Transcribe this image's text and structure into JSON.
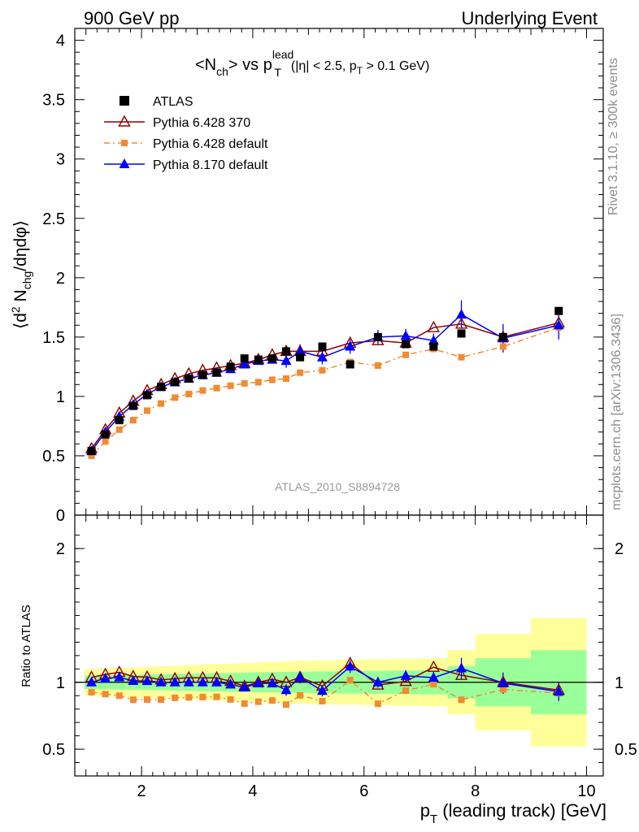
{
  "header": {
    "left": "900 GeV pp",
    "right": "Underlying Event"
  },
  "side_labels": {
    "top": "Rivet 3.1.10, ≥ 300k events",
    "bottom": "mcplots.cern.ch [arXiv:1306.3436]"
  },
  "watermark": "ATLAS_2010_S8894728",
  "chart_data": {
    "type": "scatter",
    "title": "<N_ch> vs p_T^lead (|η| < 2.5, p_T > 0.1 GeV)",
    "title_parts": {
      "main_a": "<N",
      "main_sub": "ch",
      "main_b": "> vs p",
      "main_sup": "lead",
      "main_sub2": "T",
      "cond_a": "(|η| < 2.5, p",
      "cond_sub": "T",
      "cond_b": " > 0.1 GeV)"
    },
    "xlabel": "p_T (leading track) [GeV]",
    "xlabel_parts": {
      "a": "p",
      "sub": "T",
      "b": " (leading track) [GeV]"
    },
    "ylabel": "⟨d² N_chg/dηdφ⟩",
    "ylabel_parts": {
      "a": "⟨d",
      "sup": "2",
      "b": " N",
      "sub": "chg",
      "c": "/dηdφ⟩"
    },
    "ratio_ylabel": "Ratio to ATLAS",
    "xlim": [
      0.8,
      10.3
    ],
    "ylim": [
      0,
      4.1
    ],
    "ratio_ylim": [
      0.3,
      2.25
    ],
    "x_ticks": [
      "2",
      "4",
      "6",
      "8",
      "10"
    ],
    "y_ticks": [
      "0",
      "0.5",
      "1",
      "1.5",
      "2",
      "2.5",
      "3",
      "3.5",
      "4"
    ],
    "ratio_ticks": [
      "0.5",
      "1",
      "2"
    ],
    "legend_position": "top-left",
    "x": [
      1.1,
      1.35,
      1.6,
      1.85,
      2.1,
      2.35,
      2.6,
      2.85,
      3.1,
      3.35,
      3.6,
      3.85,
      4.1,
      4.35,
      4.6,
      4.85,
      5.25,
      5.75,
      6.25,
      6.75,
      7.25,
      7.75,
      8.5,
      9.5
    ],
    "series": [
      {
        "name": "ATLAS",
        "color": "#000000",
        "marker": "square",
        "values": [
          0.54,
          0.68,
          0.8,
          0.92,
          1.01,
          1.08,
          1.12,
          1.15,
          1.18,
          1.2,
          1.25,
          1.32,
          1.31,
          1.32,
          1.38,
          1.33,
          1.42,
          1.27,
          1.5,
          1.44,
          1.42,
          1.53,
          1.5,
          1.72
        ]
      },
      {
        "name": "Pythia 6.428 370",
        "color": "#8b0000",
        "marker": "open-triangle",
        "values": [
          0.56,
          0.72,
          0.86,
          0.96,
          1.05,
          1.1,
          1.15,
          1.19,
          1.22,
          1.24,
          1.26,
          1.28,
          1.31,
          1.35,
          1.38,
          1.38,
          1.38,
          1.45,
          1.47,
          1.45,
          1.58,
          1.61,
          1.5,
          1.62
        ]
      },
      {
        "name": "Pythia 6.428 default",
        "color": "#f28a30",
        "marker": "filled-square",
        "values": [
          0.5,
          0.62,
          0.72,
          0.8,
          0.88,
          0.94,
          0.99,
          1.02,
          1.05,
          1.07,
          1.09,
          1.11,
          1.12,
          1.14,
          1.15,
          1.2,
          1.22,
          1.29,
          1.26,
          1.35,
          1.4,
          1.33,
          1.42,
          1.58
        ]
      },
      {
        "name": "Pythia 8.170 default",
        "color": "#0000ff",
        "marker": "filled-triangle",
        "values": [
          0.54,
          0.7,
          0.83,
          0.93,
          1.02,
          1.08,
          1.12,
          1.15,
          1.18,
          1.2,
          1.23,
          1.27,
          1.3,
          1.31,
          1.3,
          1.38,
          1.33,
          1.42,
          1.5,
          1.51,
          1.47,
          1.69,
          1.49,
          1.6
        ]
      }
    ]
  }
}
